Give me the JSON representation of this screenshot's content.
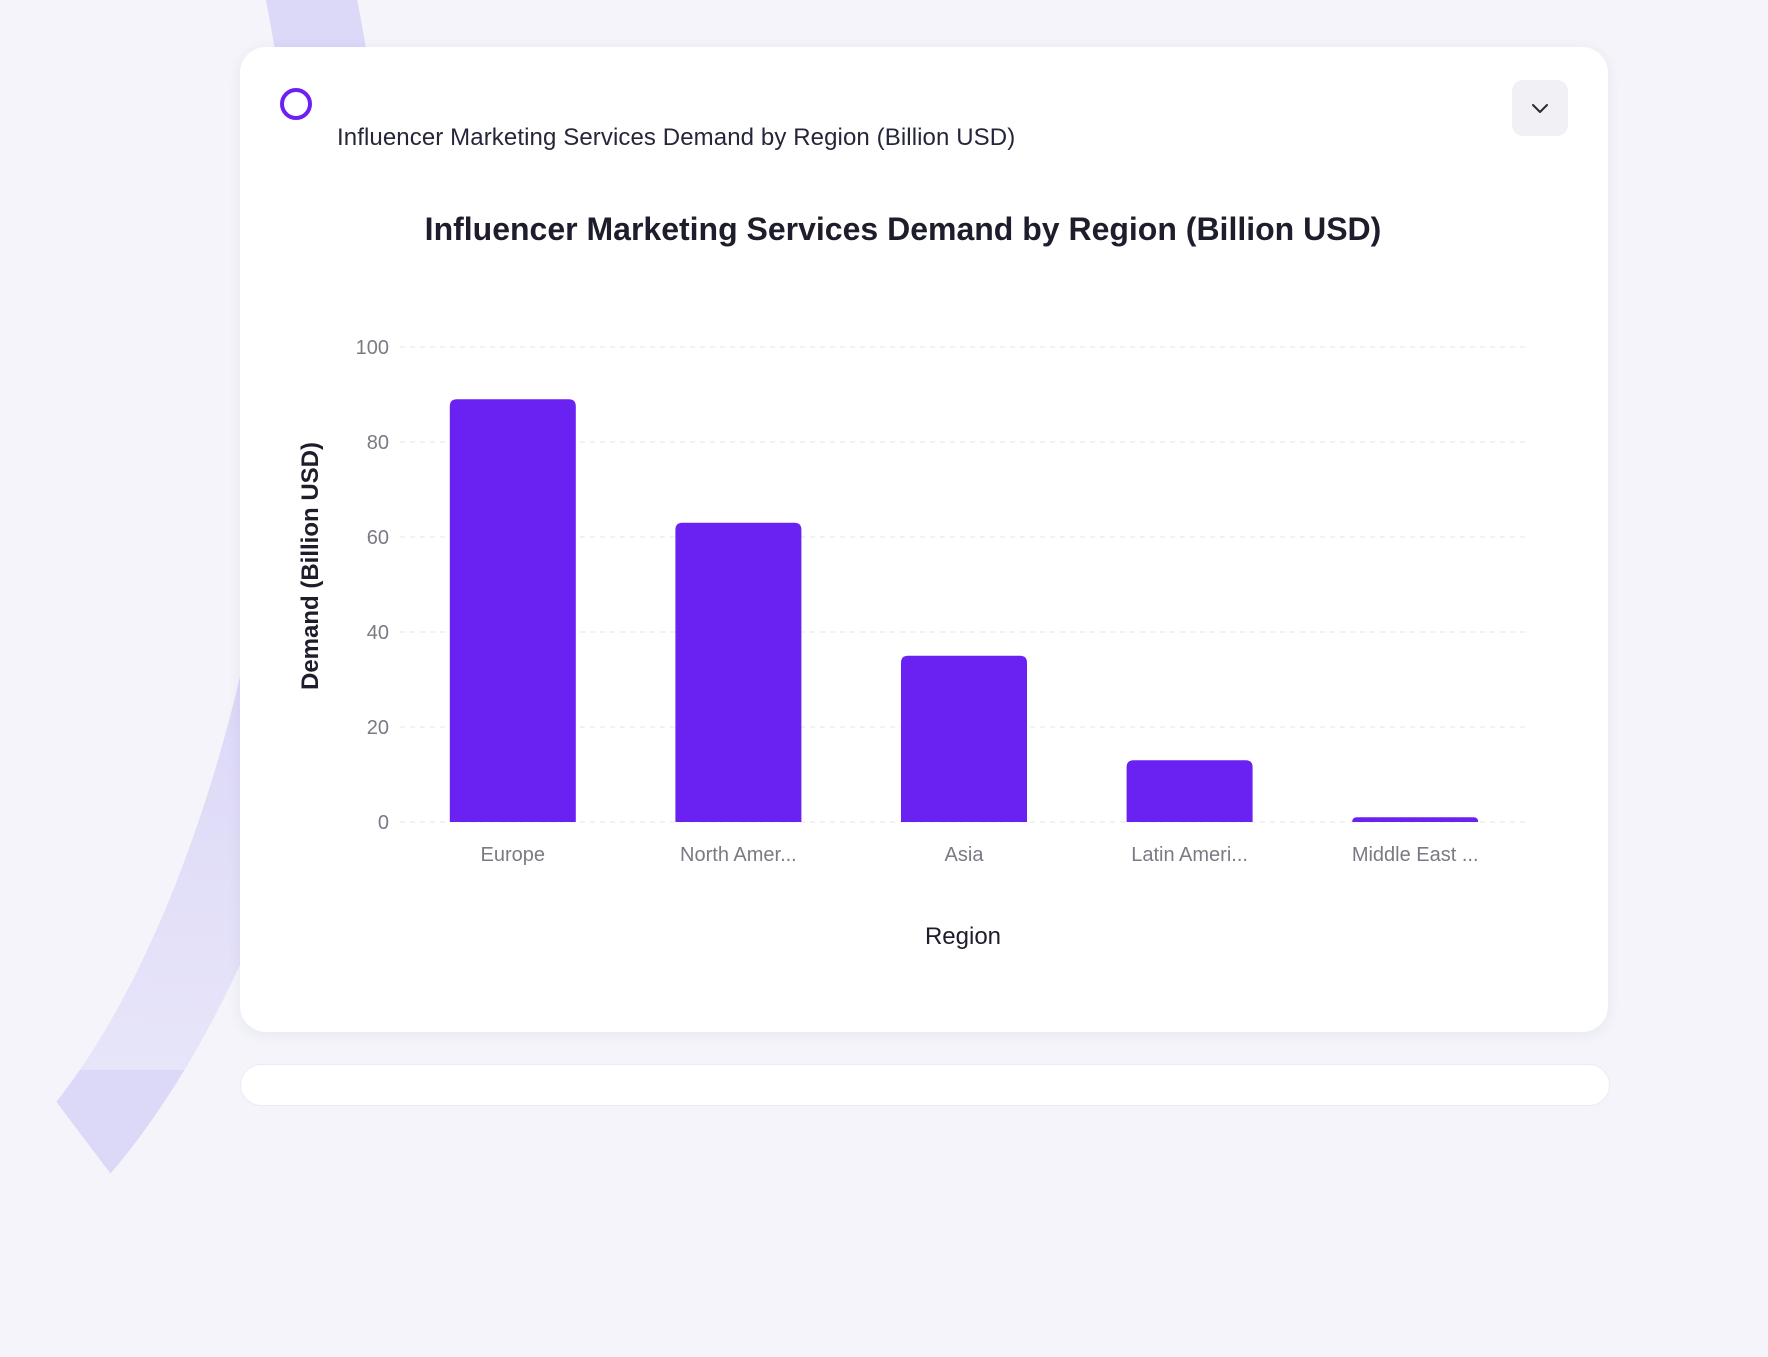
{
  "card": {
    "header_title": "Influencer Marketing Services Demand by Region (Billion USD)"
  },
  "icons": {
    "brand": "ring-icon",
    "dropdown": "chevron-down-icon"
  },
  "colors": {
    "accent": "#6a22f2",
    "background": "#f4f4fa",
    "card": "#ffffff"
  },
  "chart_data": {
    "type": "bar",
    "title": "Influencer Marketing Services Demand by Region (Billion USD)",
    "xlabel": "Region",
    "ylabel": "Demand (Billion USD)",
    "categories": [
      "Europe",
      "North Amer...",
      "Asia",
      "Latin Ameri...",
      "Middle East ..."
    ],
    "values": [
      89,
      63,
      35,
      13,
      1
    ],
    "ylim": [
      0,
      100
    ],
    "yticks": [
      0,
      20,
      40,
      60,
      80,
      100
    ],
    "grid": true,
    "bar_color": "#6a22f2"
  }
}
